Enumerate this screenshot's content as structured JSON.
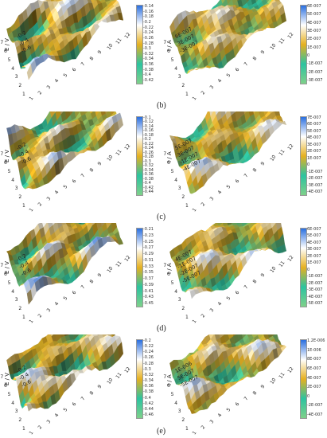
{
  "captions": [
    "(b)",
    "(c)",
    "(d)",
    "(e)"
  ],
  "colors": {
    "low": "#7fd08a",
    "mid_low": "#2cc3a0",
    "mid": "#e6b020",
    "high": "#ffffff",
    "top": "#2a6fdf"
  },
  "chart_data": [
    {
      "type": "heatmap",
      "panel": "b-left",
      "zlabel": "E / V",
      "z_ticks": [
        "-0.2",
        "-0.4",
        "-0.6"
      ],
      "x_ticks": [
        "1",
        "2",
        "3",
        "4",
        "5",
        "6",
        "7",
        "8",
        "9",
        "10",
        "11",
        "12"
      ],
      "y_ticks": [
        "1",
        "2",
        "3",
        "4",
        "5",
        "6",
        "7"
      ],
      "colorbar_ticks": [
        "-0.14",
        "-0.16",
        "-0.18",
        "-0.2",
        "-0.22",
        "-0.24",
        "-0.26",
        "-0.28",
        "-0.3",
        "-0.32",
        "-0.34",
        "-0.36",
        "-0.38",
        "-0.4",
        "-0.42"
      ],
      "zlim": [
        -0.42,
        -0.14
      ]
    },
    {
      "type": "heatmap",
      "panel": "b-right",
      "zlabel": "I / A",
      "z_ticks": [
        "6E-007",
        "3E-007",
        "-3E-007"
      ],
      "x_ticks": [
        "1",
        "2",
        "3",
        "4",
        "5",
        "6",
        "7",
        "8",
        "9",
        "10",
        "11",
        "12"
      ],
      "y_ticks": [
        "1",
        "2",
        "3",
        "4",
        "5",
        "6",
        "7"
      ],
      "colorbar_ticks": [
        "6E-007",
        "5E-007",
        "4E-007",
        "3E-007",
        "2E-007",
        "1E-007",
        "0",
        "-1E-007",
        "-2E-007",
        "-3E-007"
      ],
      "zlim": [
        -3e-07,
        6e-07
      ]
    },
    {
      "type": "heatmap",
      "panel": "c-left",
      "zlabel": "E / V",
      "z_ticks": [
        "-0.2",
        "-0.4",
        "-0.6"
      ],
      "x_ticks": [
        "1",
        "2",
        "3",
        "4",
        "5",
        "6",
        "7",
        "8",
        "9",
        "10",
        "11",
        "12"
      ],
      "y_ticks": [
        "1",
        "2",
        "3",
        "4",
        "5",
        "6",
        "7"
      ],
      "colorbar_ticks": [
        "-0.1",
        "-0.12",
        "-0.14",
        "-0.16",
        "-0.18",
        "-0.2",
        "-0.22",
        "-0.24",
        "-0.26",
        "-0.28",
        "-0.3",
        "-0.32",
        "-0.34",
        "-0.36",
        "-0.38",
        "-0.4",
        "-0.42",
        "-0.44"
      ],
      "zlim": [
        -0.44,
        -0.1
      ]
    },
    {
      "type": "heatmap",
      "panel": "c-right",
      "zlabel": "I / A",
      "z_ticks": [
        "5E-007",
        "3E-007",
        "-1E-007",
        "-4E-007"
      ],
      "x_ticks": [
        "1",
        "2",
        "3",
        "4",
        "5",
        "6",
        "7",
        "8",
        "9",
        "10",
        "11",
        "12"
      ],
      "y_ticks": [
        "1",
        "2",
        "3",
        "4",
        "5",
        "6",
        "7"
      ],
      "colorbar_ticks": [
        "7E-007",
        "6E-007",
        "5E-007",
        "4E-007",
        "3E-007",
        "2E-007",
        "1E-007",
        "0",
        "-1E-007",
        "-2E-007",
        "-3E-007",
        "-4E-007"
      ],
      "zlim": [
        -4e-07,
        7e-07
      ]
    },
    {
      "type": "heatmap",
      "panel": "d-left",
      "zlabel": "E / V",
      "z_ticks": [
        "-0.2",
        "-0.4",
        "-0.6"
      ],
      "x_ticks": [
        "1",
        "2",
        "3",
        "4",
        "5",
        "6",
        "7",
        "8",
        "9",
        "10",
        "11",
        "12"
      ],
      "y_ticks": [
        "1",
        "2",
        "3",
        "4",
        "5",
        "6",
        "7"
      ],
      "colorbar_ticks": [
        "-0.21",
        "-0.23",
        "-0.25",
        "-0.27",
        "-0.29",
        "-0.31",
        "-0.33",
        "-0.35",
        "-0.37",
        "-0.39",
        "-0.41",
        "-0.43",
        "-0.45"
      ],
      "zlim": [
        -0.45,
        -0.21
      ]
    },
    {
      "type": "heatmap",
      "panel": "d-right",
      "zlabel": "I / A",
      "z_ticks": [
        "4E-007",
        "-1E-007",
        "-2E-007",
        "-5E-007"
      ],
      "x_ticks": [
        "1",
        "2",
        "3",
        "4",
        "5",
        "6",
        "7",
        "8",
        "9",
        "10",
        "11",
        "12"
      ],
      "y_ticks": [
        "1",
        "2",
        "3",
        "4",
        "5",
        "6",
        "7"
      ],
      "colorbar_ticks": [
        "6E-007",
        "5E-007",
        "4E-007",
        "3E-007",
        "2E-007",
        "1E-007",
        "0",
        "-1E-007",
        "-2E-007",
        "-3E-007",
        "-4E-007",
        "-5E-007"
      ],
      "zlim": [
        -5e-07,
        6e-07
      ]
    },
    {
      "type": "heatmap",
      "panel": "e-left",
      "zlabel": "E / V",
      "z_ticks": [
        "-0.2",
        "-0.4",
        "-0.6"
      ],
      "x_ticks": [
        "1",
        "2",
        "3",
        "4",
        "5",
        "6",
        "7",
        "8",
        "9",
        "10",
        "11",
        "12"
      ],
      "y_ticks": [
        "1",
        "2",
        "3",
        "4",
        "5",
        "6",
        "7"
      ],
      "colorbar_ticks": [
        "-0.2",
        "-0.22",
        "-0.24",
        "-0.26",
        "-0.28",
        "-0.3",
        "-0.32",
        "-0.34",
        "-0.36",
        "-0.38",
        "-0.4",
        "-0.42",
        "-0.44",
        "-0.46"
      ],
      "zlim": [
        -0.46,
        -0.2
      ]
    },
    {
      "type": "heatmap",
      "panel": "e-right",
      "zlabel": "I / A",
      "z_ticks": [
        "1E-006",
        "5E-007",
        "-5E-007"
      ],
      "x_ticks": [
        "1",
        "2",
        "3",
        "4",
        "5",
        "6",
        "7",
        "8",
        "9",
        "10",
        "11",
        "12"
      ],
      "y_ticks": [
        "1",
        "2",
        "3",
        "4",
        "5",
        "6",
        "7"
      ],
      "colorbar_ticks": [
        "1.2E-006",
        "1E-006",
        "8E-007",
        "6E-007",
        "4E-007",
        "2E-007",
        "0",
        "-2E-007",
        "-4E-007"
      ],
      "zlim": [
        -4e-07,
        1.2e-06
      ]
    }
  ]
}
